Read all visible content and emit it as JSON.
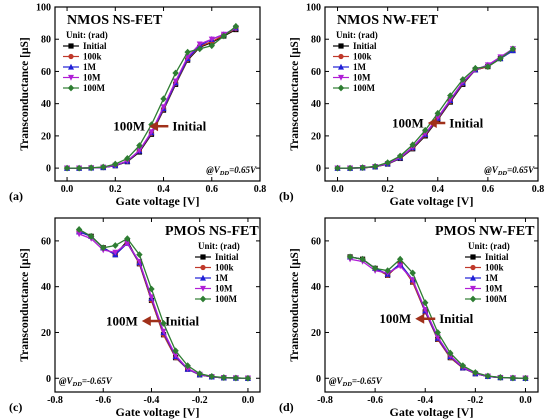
{
  "legend_header": "Unit: (rad)",
  "series_styles": [
    {
      "name": "Initial",
      "color": "#000000",
      "marker": "square"
    },
    {
      "name": "100k",
      "color": "#c0392b",
      "marker": "circle"
    },
    {
      "name": "1M",
      "color": "#1f1fd6",
      "marker": "triangle"
    },
    {
      "name": "10M",
      "color": "#b01fd6",
      "marker": "triangle-down"
    },
    {
      "name": "100M",
      "color": "#2e7d32",
      "marker": "diamond"
    }
  ],
  "arrow_color": "#a0301a",
  "chart_data": [
    {
      "type": "line",
      "panel_label": "(a)",
      "title": "NMOS NS-FET",
      "xlabel": "Gate voltage [V]",
      "ylabel": "Transconductance [μS]",
      "xlim": [
        -0.05,
        0.8
      ],
      "ylim": [
        -8,
        100
      ],
      "xticks": [
        0.0,
        0.2,
        0.4,
        0.6,
        0.8
      ],
      "xtick_labels": [
        "0.0",
        "0.2",
        "0.4",
        "0.6",
        "0.8"
      ],
      "yticks": [
        0,
        20,
        40,
        60,
        80,
        100
      ],
      "ytick_labels": [
        "0",
        "20",
        "40",
        "60",
        "80",
        "100"
      ],
      "legend": [
        "Initial",
        "100k",
        "1M",
        "10M",
        "100M"
      ],
      "annotation_left": "100M",
      "annotation_right": "Initial",
      "condition": "@V_DD=0.65V",
      "arrow": {
        "from": [
          0.42,
          26
        ],
        "to": [
          0.34,
          26
        ]
      },
      "x": [
        0.0,
        0.05,
        0.1,
        0.15,
        0.2,
        0.25,
        0.3,
        0.35,
        0.4,
        0.45,
        0.5,
        0.55,
        0.6,
        0.65,
        0.7
      ],
      "series": [
        {
          "name": "Initial",
          "values": [
            0,
            0,
            0.1,
            0.4,
            1.5,
            4,
            10,
            21,
            36,
            52,
            67,
            75,
            78,
            82,
            86
          ]
        },
        {
          "name": "100k",
          "values": [
            0,
            0,
            0.1,
            0.4,
            1.6,
            4.2,
            10.5,
            21.5,
            36.5,
            52.5,
            67.5,
            75.5,
            78.5,
            82.5,
            86.5
          ]
        },
        {
          "name": "1M",
          "values": [
            0,
            0,
            0.1,
            0.4,
            1.6,
            4.3,
            10.7,
            22,
            37,
            53,
            68,
            76,
            80,
            83,
            87
          ]
        },
        {
          "name": "10M",
          "values": [
            0,
            0,
            0.1,
            0.5,
            1.7,
            4.5,
            11,
            22.5,
            38,
            54,
            69,
            77,
            80,
            83,
            87
          ]
        },
        {
          "name": "100M",
          "values": [
            0,
            0,
            0.2,
            0.7,
            2.5,
            6,
            14,
            27,
            43,
            59,
            72,
            74,
            76,
            82,
            88
          ]
        }
      ]
    },
    {
      "type": "line",
      "panel_label": "(b)",
      "title": "NMOS NW-FET",
      "xlabel": "Gate voltage [V]",
      "ylabel": "Transconductance [μS]",
      "xlim": [
        -0.05,
        0.8
      ],
      "ylim": [
        -8,
        100
      ],
      "xticks": [
        0.0,
        0.2,
        0.4,
        0.6,
        0.8
      ],
      "xtick_labels": [
        "0.0",
        "0.2",
        "0.4",
        "0.6",
        "0.8"
      ],
      "yticks": [
        0,
        20,
        40,
        60,
        80,
        100
      ],
      "ytick_labels": [
        "0",
        "20",
        "40",
        "60",
        "80",
        "100"
      ],
      "legend": [
        "Initial",
        "100k",
        "1M",
        "10M",
        "100M"
      ],
      "annotation_left": "100M",
      "annotation_right": "Initial",
      "condition": "@V_DD=0.65V",
      "arrow": {
        "from": [
          0.43,
          28
        ],
        "to": [
          0.36,
          28
        ]
      },
      "x": [
        0.0,
        0.05,
        0.1,
        0.15,
        0.2,
        0.25,
        0.3,
        0.35,
        0.4,
        0.45,
        0.5,
        0.55,
        0.6,
        0.65,
        0.7
      ],
      "series": [
        {
          "name": "Initial",
          "values": [
            0,
            0,
            0.2,
            0.8,
            2.5,
            6,
            12,
            20,
            30,
            41,
            52,
            61,
            63,
            68,
            73
          ]
        },
        {
          "name": "100k",
          "values": [
            0,
            0,
            0.2,
            0.8,
            2.6,
            6.2,
            12.3,
            20.5,
            30.5,
            41.5,
            52.5,
            61,
            63,
            68,
            73
          ]
        },
        {
          "name": "1M",
          "values": [
            0,
            0,
            0.2,
            0.9,
            2.7,
            6.4,
            12.7,
            21,
            31,
            42,
            53,
            61,
            64,
            68,
            73
          ]
        },
        {
          "name": "10M",
          "values": [
            0,
            0,
            0.2,
            0.9,
            2.8,
            6.6,
            13,
            21.5,
            31.5,
            42.5,
            53.5,
            61,
            64,
            69,
            74
          ]
        },
        {
          "name": "100M",
          "values": [
            0,
            0,
            0.3,
            1.1,
            3.4,
            7.5,
            14.5,
            23.5,
            34,
            45,
            55,
            62,
            63,
            68,
            74
          ]
        }
      ]
    },
    {
      "type": "line",
      "panel_label": "(c)",
      "title": "PMOS NS-FET",
      "xlabel": "Gate voltage [V]",
      "ylabel": "Transconductance [μS]",
      "xlim": [
        -0.8,
        0.05
      ],
      "ylim": [
        -6,
        70
      ],
      "xticks": [
        -0.8,
        -0.6,
        -0.4,
        -0.2,
        0.0
      ],
      "xtick_labels": [
        "-0.8",
        "-0.6",
        "-0.4",
        "-0.2",
        "0.0"
      ],
      "yticks": [
        0,
        20,
        40,
        60
      ],
      "ytick_labels": [
        "0",
        "20",
        "40",
        "60"
      ],
      "legend": [
        "Initial",
        "100k",
        "1M",
        "10M",
        "100M"
      ],
      "annotation_left": "100M",
      "annotation_right": "Initial",
      "condition": "@V_DD=-0.65V",
      "arrow": {
        "from": [
          -0.36,
          25
        ],
        "to": [
          -0.44,
          25
        ]
      },
      "x": [
        -0.7,
        -0.65,
        -0.6,
        -0.55,
        -0.5,
        -0.45,
        -0.4,
        -0.35,
        -0.3,
        -0.25,
        -0.2,
        -0.15,
        -0.1,
        -0.05,
        0.0
      ],
      "series": [
        {
          "name": "Initial",
          "values": [
            64,
            62,
            57,
            54,
            60,
            50,
            34,
            19,
            9,
            4,
            1.5,
            0.6,
            0.2,
            0.1,
            0
          ]
        },
        {
          "name": "100k",
          "values": [
            64,
            62,
            57,
            54,
            59,
            50,
            34,
            19,
            9,
            4,
            1.5,
            0.6,
            0.2,
            0.1,
            0
          ]
        },
        {
          "name": "1M",
          "values": [
            64,
            62,
            57,
            54,
            59,
            50.5,
            35,
            20,
            9.5,
            4,
            1.6,
            0.6,
            0.2,
            0.1,
            0
          ]
        },
        {
          "name": "10M",
          "values": [
            63,
            61,
            56,
            55,
            59,
            51,
            35.5,
            20.5,
            10,
            4.2,
            1.7,
            0.6,
            0.2,
            0.1,
            0
          ]
        },
        {
          "name": "100M",
          "values": [
            65,
            62,
            57,
            58,
            61,
            54,
            39,
            24,
            12,
            5.5,
            2,
            0.8,
            0.3,
            0.1,
            0
          ]
        }
      ]
    },
    {
      "type": "line",
      "panel_label": "(d)",
      "title": "PMOS NW-FET",
      "xlabel": "Gate voltage [V]",
      "ylabel": "Transconductance [μS]",
      "xlim": [
        -0.8,
        0.05
      ],
      "ylim": [
        -6,
        70
      ],
      "xticks": [
        -0.8,
        -0.6,
        -0.4,
        -0.2,
        0.0
      ],
      "xtick_labels": [
        "-0.8",
        "-0.6",
        "-0.4",
        "-0.2",
        "0.0"
      ],
      "yticks": [
        0,
        20,
        40,
        60
      ],
      "ytick_labels": [
        "0",
        "20",
        "40",
        "60"
      ],
      "legend": [
        "Initial",
        "100k",
        "1M",
        "10M",
        "100M"
      ],
      "annotation_left": "100M",
      "annotation_right": "Initial",
      "condition": "@V_DD=-0.65V",
      "arrow": {
        "from": [
          -0.36,
          26
        ],
        "to": [
          -0.44,
          26
        ]
      },
      "x": [
        -0.7,
        -0.65,
        -0.6,
        -0.55,
        -0.5,
        -0.45,
        -0.4,
        -0.35,
        -0.3,
        -0.25,
        -0.2,
        -0.15,
        -0.1,
        -0.05,
        0.0
      ],
      "series": [
        {
          "name": "Initial",
          "values": [
            53,
            52,
            48,
            45,
            50,
            42,
            29,
            17,
            9,
            4.5,
            2,
            0.8,
            0.3,
            0.1,
            0
          ]
        },
        {
          "name": "100k",
          "values": [
            53,
            52,
            48,
            45,
            50,
            42,
            29,
            17,
            9,
            4.5,
            2,
            0.8,
            0.3,
            0.1,
            0
          ]
        },
        {
          "name": "1M",
          "values": [
            53,
            52,
            48,
            45.5,
            50,
            43,
            29.5,
            17.5,
            9.5,
            4.6,
            2,
            0.8,
            0.3,
            0.1,
            0
          ]
        },
        {
          "name": "10M",
          "values": [
            52,
            51,
            47,
            46,
            49,
            43,
            30,
            18,
            9.8,
            4.8,
            2.1,
            0.9,
            0.3,
            0.1,
            0
          ]
        },
        {
          "name": "100M",
          "values": [
            53,
            52,
            48,
            47,
            52,
            46,
            33,
            20,
            11,
            5.5,
            2.5,
            1,
            0.4,
            0.1,
            0
          ]
        }
      ]
    }
  ]
}
